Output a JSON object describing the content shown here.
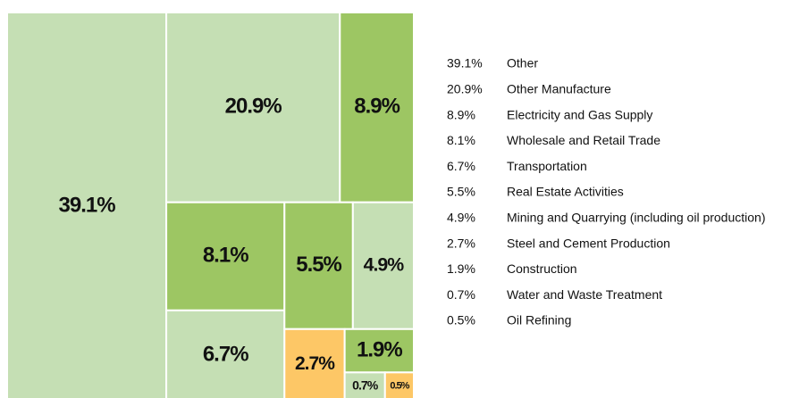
{
  "chart_data": {
    "type": "treemap",
    "categories": [
      "Other",
      "Other Manufacture",
      "Electricity and Gas Supply",
      "Wholesale and Retail Trade",
      "Transportation",
      "Real Estate Activities",
      "Mining and Quarrying (including oil production)",
      "Steel and Cement Production",
      "Construction",
      "Water and Waste Treatment",
      "Oil Refining"
    ],
    "values": [
      39.1,
      20.9,
      8.9,
      8.1,
      6.7,
      5.5,
      4.9,
      2.7,
      1.9,
      0.7,
      0.5
    ],
    "value_labels": [
      "39.1%",
      "20.9%",
      "8.9%",
      "8.1%",
      "6.7%",
      "5.5%",
      "4.9%",
      "2.7%",
      "1.9%",
      "0.7%",
      "0.5%"
    ],
    "colors": [
      "#c5dfb4",
      "#c5dfb4",
      "#9dc663",
      "#9dc663",
      "#c5dfb4",
      "#9dc663",
      "#c5dfb4",
      "#fdc766",
      "#9dc663",
      "#c5dfb4",
      "#fdc766"
    ]
  }
}
